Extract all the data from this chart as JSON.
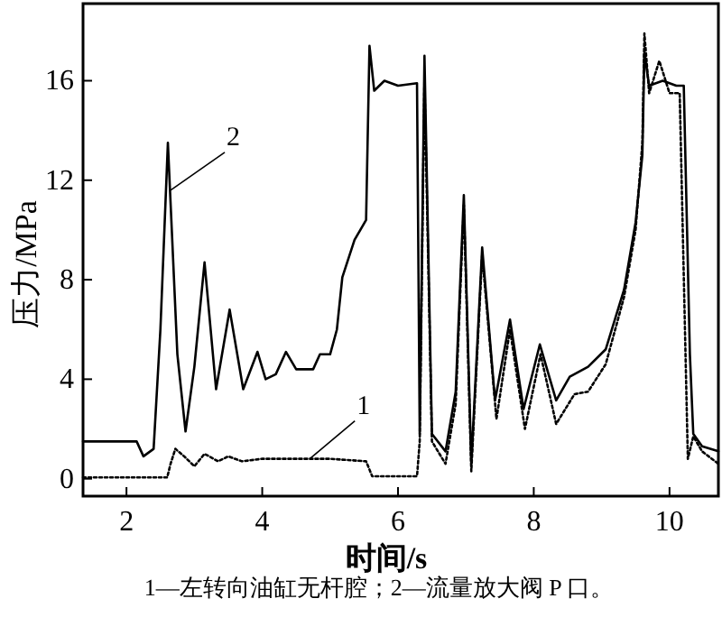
{
  "chart_data": {
    "type": "line",
    "xlabel": "时间/s",
    "ylabel": "压力/MPa",
    "xlim": [
      1.36,
      10.72
    ],
    "ylim": [
      -0.7,
      19.1
    ],
    "xticks": [
      2,
      4,
      6,
      8,
      10
    ],
    "yticks": [
      0,
      4,
      8,
      12,
      16
    ],
    "grid": false,
    "marker": "none",
    "series": [
      {
        "color": "#000000",
        "line_style": "dotted",
        "x": [
          1.36,
          2.6,
          2.65,
          2.72,
          2.85,
          3.0,
          3.15,
          3.35,
          3.5,
          3.7,
          4.0,
          4.5,
          5.0,
          5.53,
          5.62,
          6.0,
          6.28,
          6.32,
          6.39,
          6.5,
          6.7,
          6.85,
          6.97,
          7.08,
          7.24,
          7.45,
          7.65,
          7.87,
          8.1,
          8.33,
          8.6,
          8.8,
          9.06,
          9.33,
          9.5,
          9.6,
          9.63,
          9.7,
          9.85,
          10.0,
          10.15,
          10.27,
          10.35,
          10.48,
          10.72
        ],
        "values": [
          0.05,
          0.05,
          0.6,
          1.2,
          0.9,
          0.5,
          1.0,
          0.7,
          0.9,
          0.7,
          0.8,
          0.8,
          0.8,
          0.7,
          0.1,
          0.1,
          0.1,
          1.5,
          16.0,
          1.5,
          0.6,
          3.0,
          11.0,
          0.3,
          9.0,
          2.4,
          6.0,
          2.0,
          5.0,
          2.2,
          3.4,
          3.5,
          4.6,
          7.3,
          10.0,
          13.5,
          17.9,
          15.5,
          16.8,
          15.5,
          15.5,
          0.8,
          1.7,
          1.1,
          0.6
        ]
      },
      {
        "color": "#000000",
        "line_style": "solid",
        "x": [
          1.36,
          2.15,
          2.25,
          2.4,
          2.5,
          2.61,
          2.75,
          2.87,
          3.0,
          3.15,
          3.32,
          3.52,
          3.72,
          3.93,
          4.05,
          4.2,
          4.35,
          4.5,
          4.75,
          4.85,
          5.0,
          5.1,
          5.18,
          5.36,
          5.53,
          5.58,
          5.65,
          5.8,
          6.0,
          6.28,
          6.32,
          6.39,
          6.5,
          6.7,
          6.85,
          6.97,
          7.08,
          7.24,
          7.43,
          7.65,
          7.85,
          8.09,
          8.33,
          8.53,
          8.8,
          9.06,
          9.33,
          9.5,
          9.6,
          9.63,
          9.7,
          9.9,
          10.1,
          10.21,
          10.3,
          10.35,
          10.48,
          10.72
        ],
        "values": [
          1.5,
          1.5,
          0.9,
          1.2,
          6.0,
          13.5,
          5.0,
          1.9,
          4.5,
          8.7,
          3.6,
          6.8,
          3.6,
          5.1,
          4.0,
          4.2,
          5.1,
          4.4,
          4.4,
          5.0,
          5.0,
          6.0,
          8.1,
          9.6,
          10.4,
          17.4,
          15.6,
          16.0,
          15.8,
          15.9,
          1.8,
          17.0,
          1.8,
          1.1,
          3.5,
          11.4,
          0.6,
          9.3,
          3.15,
          6.4,
          2.8,
          5.4,
          3.15,
          4.1,
          4.5,
          5.2,
          7.6,
          10.3,
          13.0,
          17.1,
          15.8,
          16.0,
          15.8,
          15.8,
          5.0,
          1.8,
          1.3,
          1.1
        ]
      }
    ],
    "annotations": [
      {
        "text": "2",
        "x": 2.65,
        "y": 11.6
      },
      {
        "text": "1",
        "x": 4.7,
        "y": 0.8
      },
      "1—左转向油缸无杆腔；2—流量放大阀 P 口。"
    ]
  }
}
